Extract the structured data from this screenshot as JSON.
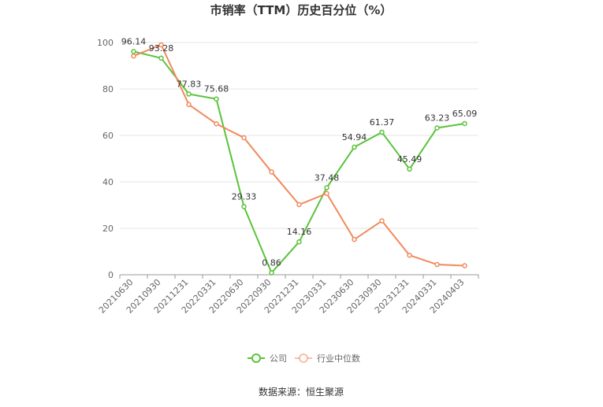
{
  "chart_data": {
    "type": "line",
    "title": "市销率（TTM）历史百分位（%）",
    "xlabel": "",
    "ylabel": "",
    "ylim": [
      0,
      100
    ],
    "yticks": [
      0,
      20,
      40,
      60,
      80,
      100
    ],
    "categories": [
      "20210630",
      "20210930",
      "20211231",
      "20220331",
      "20220630",
      "20220930",
      "20221231",
      "20230331",
      "20230630",
      "20230930",
      "20231231",
      "20240331",
      "20240403"
    ],
    "series": [
      {
        "name": "公司",
        "color": "#5ac33a",
        "values": [
          96.14,
          93.28,
          77.83,
          75.68,
          29.33,
          0.86,
          14.16,
          37.48,
          54.94,
          61.37,
          45.49,
          63.23,
          65.09
        ],
        "labels": [
          "96.14",
          "93.28",
          "77.83",
          "75.68",
          "29.33",
          "0.86",
          "14.16",
          "37.48",
          "54.94",
          "61.37",
          "45.49",
          "63.23",
          "65.09"
        ]
      },
      {
        "name": "行业中位数",
        "color": "#f08a5d",
        "values": [
          94.2,
          99.0,
          73.3,
          65.0,
          59.0,
          44.3,
          30.2,
          35.0,
          15.2,
          23.2,
          8.4,
          4.4,
          3.9
        ]
      }
    ],
    "grid": true,
    "legend_position": "bottom"
  },
  "footer": {
    "source": "数据来源：恒生聚源"
  }
}
